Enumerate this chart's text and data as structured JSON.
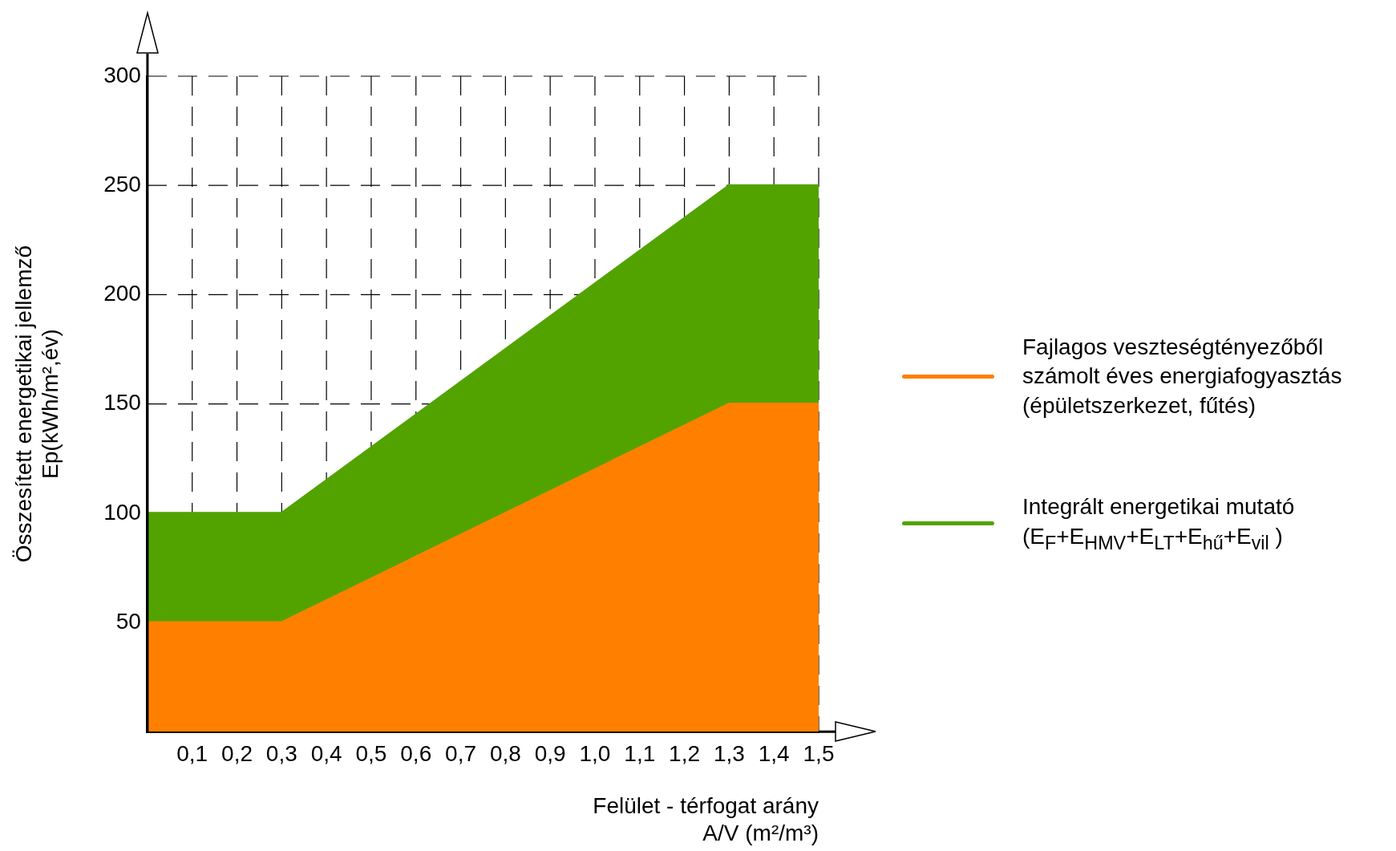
{
  "chart_data": {
    "type": "area",
    "xlabel": "Felület - térfogat arány\nA/V (m²/m³)",
    "ylabel": "Összesített energetikai jellemző\nEp(kWh/m²,év)",
    "x": [
      0,
      0.3,
      1.3,
      1.5
    ],
    "series": [
      {
        "name": "Fajlagos veszteségtényezőből számolt éves  energiafogyasztás (épületszerkezet, fűtés)",
        "color": "#ff8000",
        "values": [
          50,
          50,
          150,
          150
        ]
      },
      {
        "name": "Integrált energetikai mutató (E$_{F}$+E$_{HMV}$+E$_{LT}$+E$_{hű}$+E$_{vil}$ )",
        "color": "#52a300",
        "values": [
          100,
          100,
          250,
          250
        ]
      }
    ],
    "xlim": [
      0,
      1.5
    ],
    "xticks": [
      {
        "value": 0.1,
        "label": "0,1"
      },
      {
        "value": 0.2,
        "label": "0,2"
      },
      {
        "value": 0.3,
        "label": "0,3"
      },
      {
        "value": 0.4,
        "label": "0,4"
      },
      {
        "value": 0.5,
        "label": "0,5"
      },
      {
        "value": 0.6,
        "label": "0,6"
      },
      {
        "value": 0.7,
        "label": "0,7"
      },
      {
        "value": 0.8,
        "label": "0,8"
      },
      {
        "value": 0.9,
        "label": "0,9"
      },
      {
        "value": 1.0,
        "label": "1,0"
      },
      {
        "value": 1.1,
        "label": "1,1"
      },
      {
        "value": 1.2,
        "label": "1,2"
      },
      {
        "value": 1.3,
        "label": "1,3"
      },
      {
        "value": 1.4,
        "label": "1,4"
      },
      {
        "value": 1.5,
        "label": "1,5"
      }
    ],
    "ylim": [
      0,
      300
    ],
    "yticks": [
      50,
      100,
      150,
      200,
      250,
      300
    ],
    "grid": true,
    "legend": "right",
    "line_style": "solid"
  }
}
